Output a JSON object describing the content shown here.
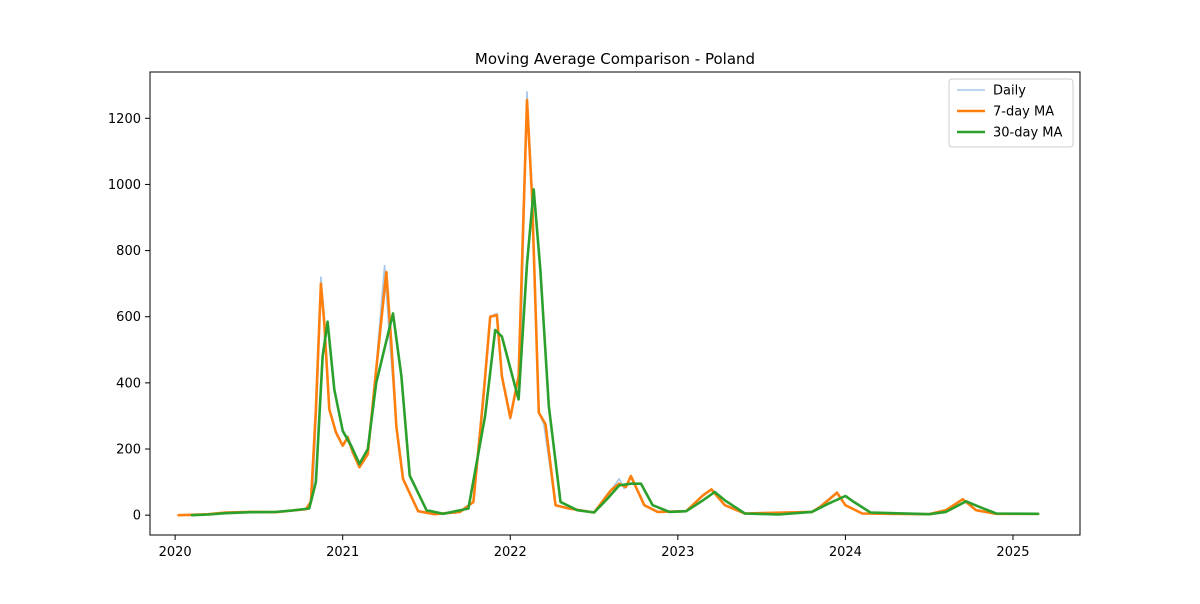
{
  "chart_data": {
    "type": "line",
    "title": "Moving Average Comparison - Poland",
    "xlabel": "",
    "ylabel": "",
    "x_range": [
      2019.85,
      2025.4
    ],
    "y_range": [
      -60,
      1340
    ],
    "x_ticks": [
      2020,
      2021,
      2022,
      2023,
      2024,
      2025
    ],
    "x_tick_labels": [
      "2020",
      "2021",
      "2022",
      "2023",
      "2024",
      "2025"
    ],
    "y_ticks": [
      0,
      200,
      400,
      600,
      800,
      1000,
      1200
    ],
    "y_tick_labels": [
      "0",
      "200",
      "400",
      "600",
      "800",
      "1000",
      "1200"
    ],
    "grid": false,
    "legend_position": "top-right",
    "series": [
      {
        "name": "Daily",
        "color": "#a6c8e8",
        "points": [
          [
            2020.02,
            0
          ],
          [
            2020.1,
            1
          ],
          [
            2020.2,
            3
          ],
          [
            2020.3,
            8
          ],
          [
            2020.45,
            10
          ],
          [
            2020.6,
            9
          ],
          [
            2020.7,
            14
          ],
          [
            2020.78,
            18
          ],
          [
            2020.82,
            50
          ],
          [
            2020.85,
            400
          ],
          [
            2020.87,
            720
          ],
          [
            2020.89,
            600
          ],
          [
            2020.92,
            320
          ],
          [
            2020.96,
            250
          ],
          [
            2021.0,
            210
          ],
          [
            2021.03,
            240
          ],
          [
            2021.06,
            200
          ],
          [
            2021.1,
            150
          ],
          [
            2021.15,
            190
          ],
          [
            2021.2,
            450
          ],
          [
            2021.25,
            755
          ],
          [
            2021.28,
            530
          ],
          [
            2021.32,
            280
          ],
          [
            2021.36,
            110
          ],
          [
            2021.45,
            12
          ],
          [
            2021.55,
            3
          ],
          [
            2021.7,
            10
          ],
          [
            2021.78,
            40
          ],
          [
            2021.84,
            380
          ],
          [
            2021.88,
            600
          ],
          [
            2021.92,
            610
          ],
          [
            2021.95,
            420
          ],
          [
            2022.0,
            290
          ],
          [
            2022.06,
            450
          ],
          [
            2022.1,
            1280
          ],
          [
            2022.13,
            980
          ],
          [
            2022.17,
            310
          ],
          [
            2022.2,
            275
          ],
          [
            2022.27,
            30
          ],
          [
            2022.35,
            20
          ],
          [
            2022.5,
            8
          ],
          [
            2022.6,
            75
          ],
          [
            2022.65,
            110
          ],
          [
            2022.68,
            80
          ],
          [
            2022.72,
            115
          ],
          [
            2022.8,
            30
          ],
          [
            2022.88,
            10
          ],
          [
            2023.05,
            12
          ],
          [
            2023.15,
            60
          ],
          [
            2023.2,
            80
          ],
          [
            2023.28,
            30
          ],
          [
            2023.4,
            5
          ],
          [
            2023.8,
            10
          ],
          [
            2023.85,
            28
          ],
          [
            2023.95,
            70
          ],
          [
            2024.0,
            30
          ],
          [
            2024.1,
            5
          ],
          [
            2024.5,
            3
          ],
          [
            2024.6,
            15
          ],
          [
            2024.7,
            48
          ],
          [
            2024.78,
            15
          ],
          [
            2024.9,
            4
          ],
          [
            2025.15,
            4
          ]
        ]
      },
      {
        "name": "7-day MA",
        "color": "#ff7f0e",
        "points": [
          [
            2020.02,
            0
          ],
          [
            2020.1,
            1
          ],
          [
            2020.2,
            3
          ],
          [
            2020.3,
            8
          ],
          [
            2020.45,
            10
          ],
          [
            2020.6,
            9
          ],
          [
            2020.7,
            14
          ],
          [
            2020.78,
            18
          ],
          [
            2020.81,
            40
          ],
          [
            2020.84,
            320
          ],
          [
            2020.87,
            700
          ],
          [
            2020.89,
            580
          ],
          [
            2020.92,
            320
          ],
          [
            2020.96,
            250
          ],
          [
            2021.0,
            210
          ],
          [
            2021.03,
            235
          ],
          [
            2021.06,
            190
          ],
          [
            2021.1,
            145
          ],
          [
            2021.15,
            185
          ],
          [
            2021.2,
            440
          ],
          [
            2021.26,
            735
          ],
          [
            2021.29,
            520
          ],
          [
            2021.32,
            270
          ],
          [
            2021.36,
            110
          ],
          [
            2021.45,
            12
          ],
          [
            2021.55,
            3
          ],
          [
            2021.7,
            10
          ],
          [
            2021.78,
            40
          ],
          [
            2021.84,
            360
          ],
          [
            2021.88,
            600
          ],
          [
            2021.92,
            605
          ],
          [
            2021.95,
            420
          ],
          [
            2022.0,
            295
          ],
          [
            2022.05,
            420
          ],
          [
            2022.1,
            1255
          ],
          [
            2022.13,
            960
          ],
          [
            2022.17,
            310
          ],
          [
            2022.21,
            275
          ],
          [
            2022.27,
            30
          ],
          [
            2022.35,
            20
          ],
          [
            2022.5,
            8
          ],
          [
            2022.6,
            75
          ],
          [
            2022.65,
            95
          ],
          [
            2022.69,
            85
          ],
          [
            2022.72,
            118
          ],
          [
            2022.8,
            30
          ],
          [
            2022.88,
            10
          ],
          [
            2023.05,
            12
          ],
          [
            2023.15,
            60
          ],
          [
            2023.2,
            78
          ],
          [
            2023.28,
            30
          ],
          [
            2023.4,
            5
          ],
          [
            2023.8,
            10
          ],
          [
            2023.85,
            25
          ],
          [
            2023.95,
            68
          ],
          [
            2024.0,
            30
          ],
          [
            2024.1,
            5
          ],
          [
            2024.5,
            3
          ],
          [
            2024.6,
            15
          ],
          [
            2024.7,
            48
          ],
          [
            2024.78,
            15
          ],
          [
            2024.9,
            4
          ],
          [
            2025.15,
            4
          ]
        ]
      },
      {
        "name": "30-day MA",
        "color": "#2ca02c",
        "points": [
          [
            2020.1,
            0
          ],
          [
            2020.2,
            2
          ],
          [
            2020.3,
            6
          ],
          [
            2020.45,
            9
          ],
          [
            2020.6,
            10
          ],
          [
            2020.7,
            14
          ],
          [
            2020.8,
            20
          ],
          [
            2020.84,
            100
          ],
          [
            2020.88,
            480
          ],
          [
            2020.91,
            585
          ],
          [
            2020.95,
            380
          ],
          [
            2021.0,
            255
          ],
          [
            2021.05,
            210
          ],
          [
            2021.1,
            155
          ],
          [
            2021.15,
            200
          ],
          [
            2021.2,
            400
          ],
          [
            2021.3,
            610
          ],
          [
            2021.35,
            420
          ],
          [
            2021.4,
            120
          ],
          [
            2021.5,
            15
          ],
          [
            2021.6,
            4
          ],
          [
            2021.75,
            20
          ],
          [
            2021.85,
            300
          ],
          [
            2021.91,
            560
          ],
          [
            2021.95,
            540
          ],
          [
            2022.05,
            350
          ],
          [
            2022.1,
            760
          ],
          [
            2022.14,
            985
          ],
          [
            2022.18,
            740
          ],
          [
            2022.23,
            330
          ],
          [
            2022.3,
            40
          ],
          [
            2022.4,
            15
          ],
          [
            2022.5,
            8
          ],
          [
            2022.58,
            50
          ],
          [
            2022.65,
            90
          ],
          [
            2022.72,
            95
          ],
          [
            2022.78,
            95
          ],
          [
            2022.85,
            30
          ],
          [
            2022.95,
            10
          ],
          [
            2023.05,
            12
          ],
          [
            2023.15,
            45
          ],
          [
            2023.22,
            70
          ],
          [
            2023.28,
            45
          ],
          [
            2023.4,
            5
          ],
          [
            2023.6,
            2
          ],
          [
            2023.8,
            10
          ],
          [
            2023.9,
            35
          ],
          [
            2024.0,
            58
          ],
          [
            2024.05,
            40
          ],
          [
            2024.15,
            8
          ],
          [
            2024.5,
            3
          ],
          [
            2024.6,
            10
          ],
          [
            2024.72,
            42
          ],
          [
            2024.8,
            25
          ],
          [
            2024.9,
            5
          ],
          [
            2025.15,
            4
          ]
        ]
      }
    ]
  }
}
